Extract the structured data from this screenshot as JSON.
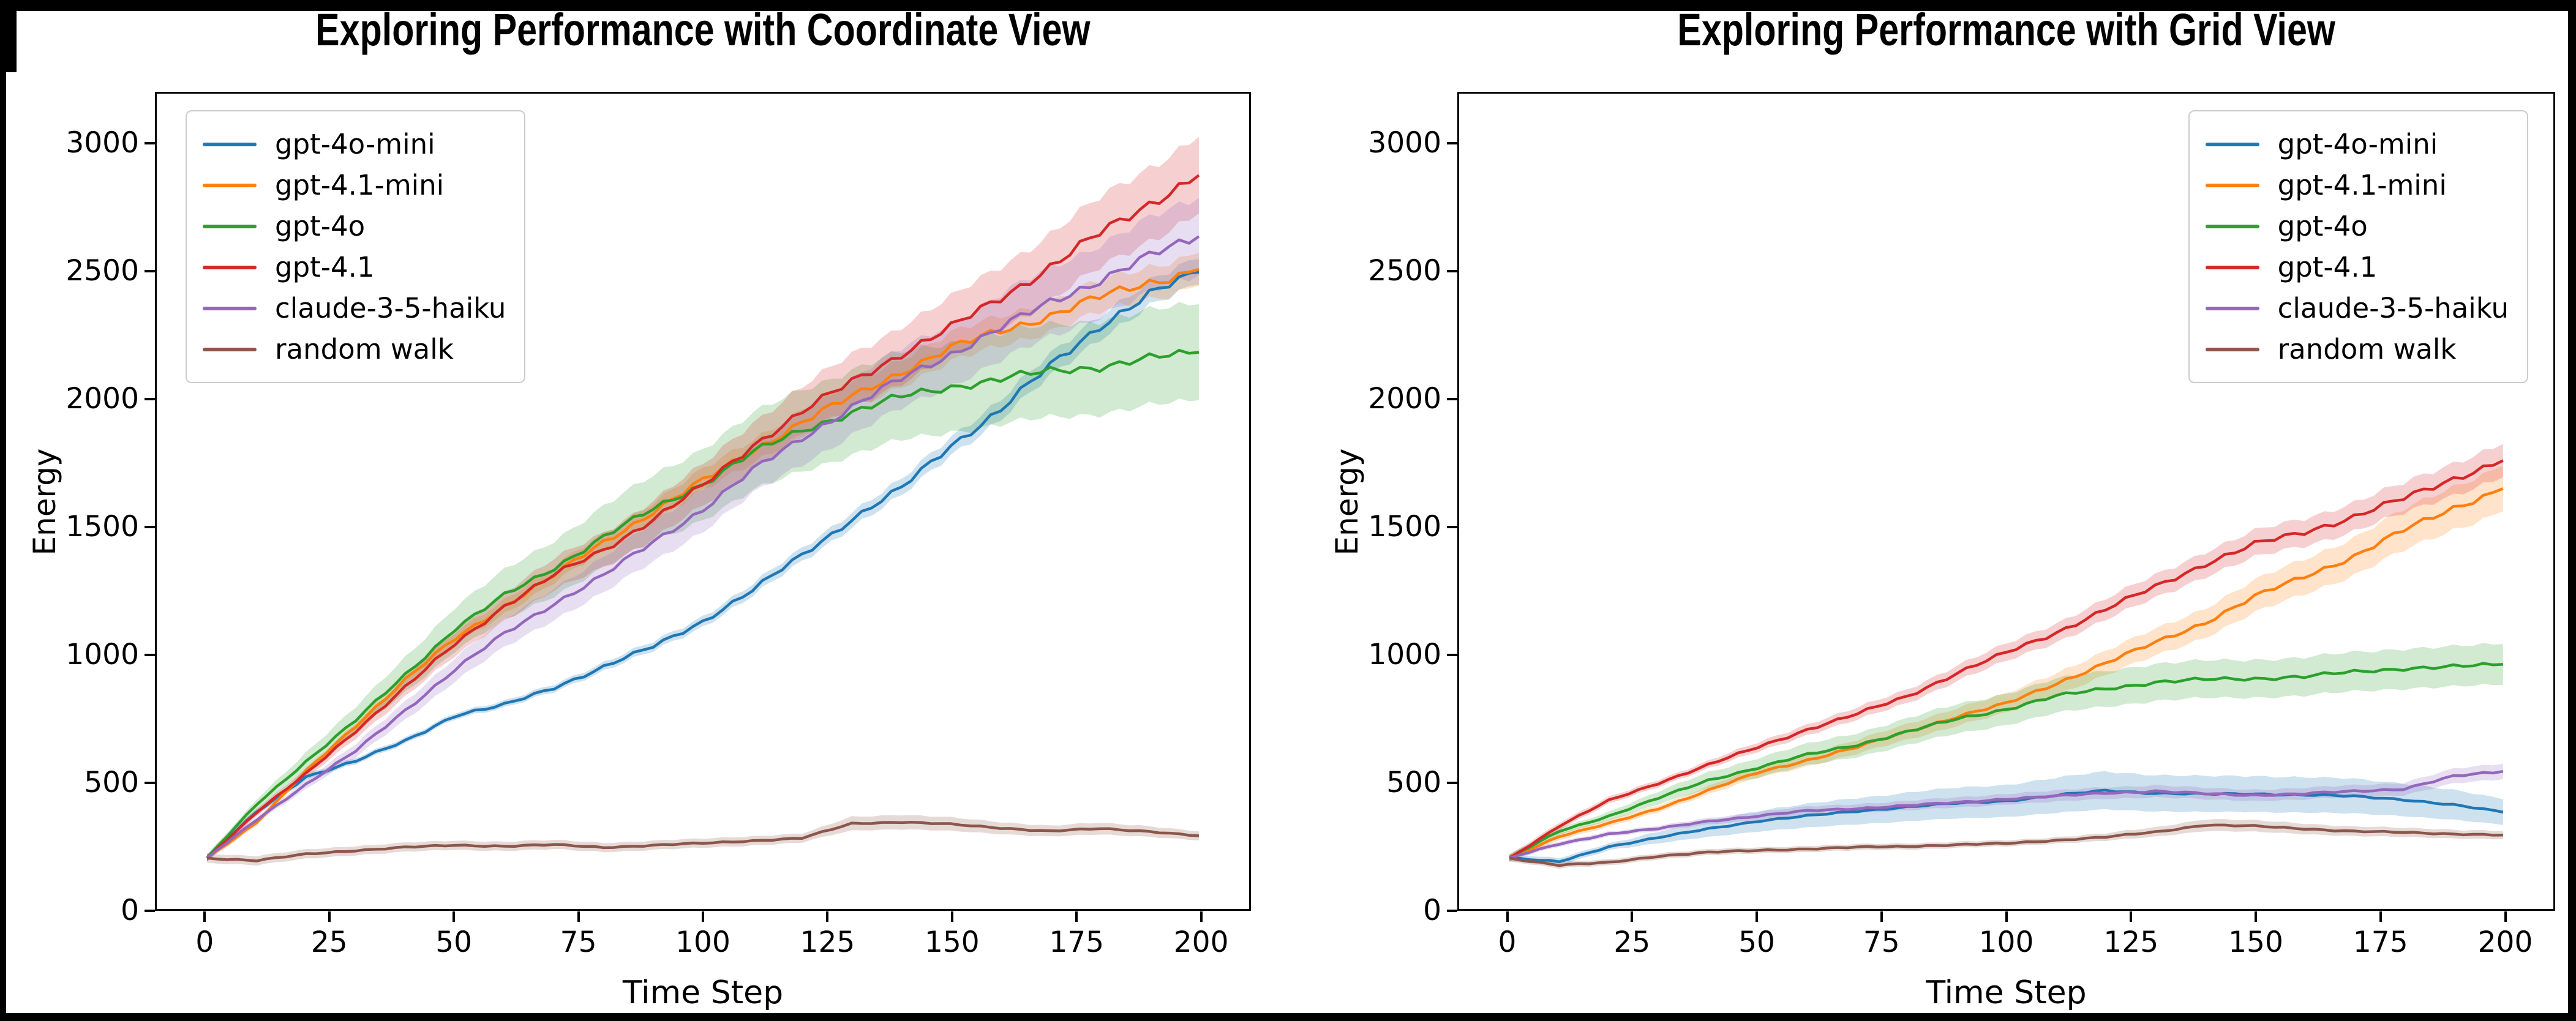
{
  "figure": {
    "background": "#ffffff",
    "frame_color": "#000000"
  },
  "chart_data": [
    {
      "type": "line",
      "title": "Exploring Performance with Coordinate View",
      "xlabel": "Time Step",
      "ylabel": "Energy",
      "x_ticks": [
        0,
        25,
        50,
        75,
        100,
        125,
        150,
        175,
        200
      ],
      "y_ticks": [
        0,
        500,
        1000,
        1500,
        2000,
        2500,
        3000
      ],
      "xlim": [
        -10,
        210
      ],
      "ylim": [
        0,
        3200
      ],
      "legend_position": "upper left",
      "grid": false,
      "x": [
        0,
        10,
        20,
        30,
        40,
        50,
        60,
        70,
        80,
        90,
        100,
        110,
        120,
        130,
        140,
        150,
        160,
        170,
        180,
        190,
        200
      ],
      "series": [
        {
          "name": "gpt-4o-mini",
          "color": "#1f77b4",
          "band": [
            0.022,
            12
          ],
          "values": [
            200,
            380,
            520,
            580,
            660,
            760,
            800,
            870,
            950,
            1030,
            1130,
            1250,
            1390,
            1530,
            1650,
            1820,
            1960,
            2130,
            2290,
            2410,
            2500
          ]
        },
        {
          "name": "gpt-4.1-mini",
          "color": "#ff7f0e",
          "band": [
            0.028,
            12
          ],
          "values": [
            200,
            340,
            540,
            720,
            900,
            1060,
            1190,
            1310,
            1440,
            1560,
            1680,
            1800,
            1910,
            2010,
            2110,
            2200,
            2270,
            2330,
            2400,
            2460,
            2510
          ]
        },
        {
          "name": "gpt-4o",
          "color": "#2ca02c",
          "band": [
            0.095,
            14
          ],
          "values": [
            200,
            410,
            580,
            740,
            920,
            1100,
            1230,
            1340,
            1460,
            1570,
            1670,
            1790,
            1880,
            1950,
            2010,
            2050,
            2080,
            2110,
            2130,
            2160,
            2185
          ]
        },
        {
          "name": "gpt-4.1",
          "color": "#d62728",
          "band": [
            0.056,
            14
          ],
          "values": [
            200,
            380,
            530,
            700,
            870,
            1040,
            1190,
            1310,
            1410,
            1530,
            1660,
            1820,
            1950,
            2070,
            2180,
            2280,
            2400,
            2520,
            2650,
            2770,
            2880
          ]
        },
        {
          "name": "claude-3-5-haiku",
          "color": "#9467bd",
          "band": [
            0.062,
            12
          ],
          "values": [
            200,
            350,
            490,
            620,
            780,
            940,
            1080,
            1200,
            1310,
            1440,
            1570,
            1720,
            1850,
            1970,
            2080,
            2180,
            2280,
            2380,
            2470,
            2560,
            2640
          ]
        },
        {
          "name": "random walk",
          "color": "#8c564b",
          "band": [
            0.2,
            18
          ],
          "values": [
            200,
            190,
            215,
            230,
            242,
            250,
            247,
            252,
            242,
            250,
            258,
            268,
            278,
            335,
            342,
            332,
            318,
            306,
            315,
            305,
            287
          ]
        }
      ]
    },
    {
      "type": "line",
      "title": "Exploring Performance with Grid View",
      "xlabel": "Time Step",
      "ylabel": "Energy",
      "x_ticks": [
        0,
        25,
        50,
        75,
        100,
        125,
        150,
        175,
        200
      ],
      "y_ticks": [
        0,
        500,
        1000,
        1500,
        2000,
        2500,
        3000
      ],
      "xlim": [
        -10,
        210
      ],
      "ylim": [
        0,
        3200
      ],
      "legend_position": "upper right",
      "grid": false,
      "x": [
        0,
        10,
        20,
        30,
        40,
        50,
        60,
        70,
        80,
        90,
        100,
        110,
        120,
        130,
        140,
        150,
        160,
        170,
        180,
        190,
        200
      ],
      "series": [
        {
          "name": "gpt-4o-mini",
          "color": "#1f77b4",
          "band": [
            0.28,
            14
          ],
          "values": [
            200,
            185,
            245,
            280,
            315,
            345,
            365,
            385,
            400,
            415,
            425,
            445,
            465,
            455,
            450,
            452,
            448,
            442,
            430,
            408,
            380
          ]
        },
        {
          "name": "gpt-4.1-mini",
          "color": "#ff7f0e",
          "band": [
            0.062,
            14
          ],
          "values": [
            200,
            285,
            335,
            395,
            465,
            535,
            585,
            635,
            695,
            755,
            805,
            885,
            965,
            1045,
            1125,
            1225,
            1305,
            1385,
            1485,
            1575,
            1650
          ]
        },
        {
          "name": "gpt-4o",
          "color": "#2ca02c",
          "band": [
            0.105,
            14
          ],
          "values": [
            200,
            305,
            365,
            435,
            505,
            555,
            605,
            645,
            695,
            745,
            785,
            835,
            865,
            890,
            900,
            905,
            912,
            930,
            945,
            950,
            960
          ]
        },
        {
          "name": "gpt-4.1",
          "color": "#d62728",
          "band": [
            0.042,
            14
          ],
          "values": [
            200,
            325,
            425,
            495,
            565,
            635,
            705,
            765,
            835,
            925,
            1005,
            1085,
            1175,
            1265,
            1355,
            1430,
            1480,
            1540,
            1610,
            1690,
            1760
          ]
        },
        {
          "name": "claude-3-5-haiku",
          "color": "#9467bd",
          "band": [
            0.09,
            10
          ],
          "values": [
            200,
            255,
            295,
            315,
            345,
            365,
            385,
            395,
            405,
            418,
            432,
            442,
            456,
            462,
            452,
            447,
            452,
            462,
            472,
            520,
            540
          ]
        },
        {
          "name": "random walk",
          "color": "#8c564b",
          "band": [
            0.18,
            12
          ],
          "values": [
            200,
            172,
            182,
            208,
            222,
            230,
            236,
            242,
            246,
            252,
            257,
            270,
            282,
            302,
            330,
            325,
            315,
            305,
            300,
            295,
            290
          ]
        }
      ]
    }
  ]
}
